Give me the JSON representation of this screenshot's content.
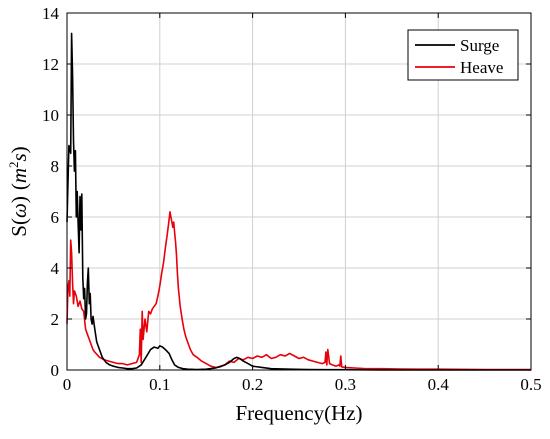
{
  "chart_data": {
    "type": "line",
    "title": "",
    "xlabel": "Frequency(Hz)",
    "ylabel_main": "S(",
    "ylabel_omega": "ω",
    "ylabel_close": ")",
    "ylabel_unit_m": "m",
    "ylabel_unit_exp": "2",
    "ylabel_unit_s": "s",
    "xlim": [
      0,
      0.5
    ],
    "ylim": [
      0,
      14
    ],
    "xticks": [
      0,
      0.1,
      0.2,
      0.3,
      0.4,
      0.5
    ],
    "xtick_labels": [
      "0",
      "0.1",
      "0.2",
      "0.3",
      "0.4",
      "0.5"
    ],
    "yticks": [
      0,
      2,
      4,
      6,
      8,
      10,
      12,
      14
    ],
    "ytick_labels": [
      "0",
      "2",
      "4",
      "6",
      "8",
      "10",
      "12",
      "14"
    ],
    "grid": true,
    "legend_position": "top-right",
    "series": [
      {
        "name": "Surge",
        "color": "#000000",
        "x": [
          0,
          0.002,
          0.004,
          0.005,
          0.006,
          0.007,
          0.008,
          0.009,
          0.01,
          0.011,
          0.012,
          0.013,
          0.014,
          0.015,
          0.016,
          0.017,
          0.018,
          0.019,
          0.02,
          0.021,
          0.022,
          0.023,
          0.024,
          0.025,
          0.026,
          0.027,
          0.028,
          0.03,
          0.032,
          0.035,
          0.038,
          0.042,
          0.046,
          0.05,
          0.055,
          0.06,
          0.065,
          0.07,
          0.075,
          0.08,
          0.085,
          0.09,
          0.094,
          0.098,
          0.1,
          0.103,
          0.106,
          0.11,
          0.113,
          0.116,
          0.12,
          0.125,
          0.13,
          0.14,
          0.15,
          0.16,
          0.17,
          0.175,
          0.18,
          0.183,
          0.186,
          0.19,
          0.195,
          0.2,
          0.21,
          0.22,
          0.24,
          0.26,
          0.28,
          0.3,
          0.35,
          0.4,
          0.45,
          0.5
        ],
        "values": [
          5.8,
          8.8,
          8.5,
          13.2,
          11.5,
          9.0,
          7.8,
          8.6,
          6.0,
          7.0,
          5.8,
          4.6,
          6.8,
          5.5,
          6.9,
          3.6,
          2.8,
          3.2,
          2.0,
          2.2,
          3.4,
          4.0,
          2.6,
          3.0,
          2.0,
          1.8,
          2.1,
          1.6,
          1.1,
          0.8,
          0.5,
          0.3,
          0.2,
          0.15,
          0.1,
          0.08,
          0.05,
          0.05,
          0.08,
          0.2,
          0.5,
          0.8,
          0.9,
          0.85,
          0.95,
          0.9,
          0.8,
          0.65,
          0.4,
          0.2,
          0.1,
          0.05,
          0.03,
          0.02,
          0.03,
          0.08,
          0.2,
          0.3,
          0.45,
          0.5,
          0.45,
          0.35,
          0.25,
          0.15,
          0.1,
          0.05,
          0.03,
          0.02,
          0.01,
          0.01,
          0.0,
          0.0,
          0.0,
          0.0
        ]
      },
      {
        "name": "Heave",
        "color": "#e8000b",
        "x": [
          0,
          0.001,
          0.002,
          0.003,
          0.004,
          0.005,
          0.006,
          0.007,
          0.008,
          0.01,
          0.012,
          0.014,
          0.016,
          0.018,
          0.02,
          0.022,
          0.024,
          0.026,
          0.028,
          0.03,
          0.035,
          0.04,
          0.045,
          0.05,
          0.055,
          0.06,
          0.065,
          0.07,
          0.075,
          0.078,
          0.079,
          0.08,
          0.081,
          0.082,
          0.084,
          0.086,
          0.088,
          0.09,
          0.092,
          0.094,
          0.096,
          0.098,
          0.1,
          0.102,
          0.104,
          0.106,
          0.108,
          0.11,
          0.111,
          0.112,
          0.113,
          0.114,
          0.115,
          0.116,
          0.117,
          0.118,
          0.119,
          0.12,
          0.122,
          0.124,
          0.126,
          0.128,
          0.13,
          0.133,
          0.136,
          0.14,
          0.145,
          0.15,
          0.155,
          0.16,
          0.165,
          0.17,
          0.175,
          0.18,
          0.185,
          0.19,
          0.195,
          0.2,
          0.205,
          0.21,
          0.215,
          0.22,
          0.225,
          0.23,
          0.235,
          0.24,
          0.245,
          0.25,
          0.255,
          0.26,
          0.265,
          0.27,
          0.275,
          0.278,
          0.279,
          0.28,
          0.281,
          0.283,
          0.286,
          0.29,
          0.293,
          0.294,
          0.295,
          0.296,
          0.3,
          0.31,
          0.32,
          0.34,
          0.36,
          0.38,
          0.4,
          0.45,
          0.5
        ],
        "values": [
          1.8,
          3.2,
          3.5,
          2.9,
          5.1,
          4.6,
          3.4,
          2.6,
          3.1,
          2.9,
          2.5,
          2.7,
          2.4,
          2.3,
          1.6,
          1.4,
          1.2,
          1.0,
          0.8,
          0.7,
          0.5,
          0.4,
          0.35,
          0.3,
          0.25,
          0.25,
          0.2,
          0.25,
          0.3,
          0.6,
          1.6,
          0.3,
          2.3,
          1.2,
          2.0,
          1.5,
          2.3,
          2.2,
          2.4,
          2.5,
          2.6,
          2.9,
          3.3,
          3.8,
          4.2,
          4.8,
          5.3,
          5.9,
          6.2,
          6.0,
          5.8,
          5.6,
          5.8,
          5.4,
          5.0,
          4.5,
          3.8,
          3.2,
          2.5,
          2.0,
          1.6,
          1.3,
          1.1,
          0.8,
          0.6,
          0.5,
          0.35,
          0.25,
          0.15,
          0.1,
          0.12,
          0.2,
          0.35,
          0.3,
          0.45,
          0.4,
          0.5,
          0.45,
          0.55,
          0.5,
          0.6,
          0.45,
          0.5,
          0.6,
          0.55,
          0.65,
          0.55,
          0.45,
          0.5,
          0.4,
          0.35,
          0.3,
          0.25,
          0.3,
          0.7,
          0.2,
          0.8,
          0.25,
          0.2,
          0.15,
          0.2,
          0.15,
          0.55,
          0.12,
          0.1,
          0.08,
          0.06,
          0.05,
          0.04,
          0.03,
          0.03,
          0.02,
          0.02
        ]
      }
    ]
  }
}
